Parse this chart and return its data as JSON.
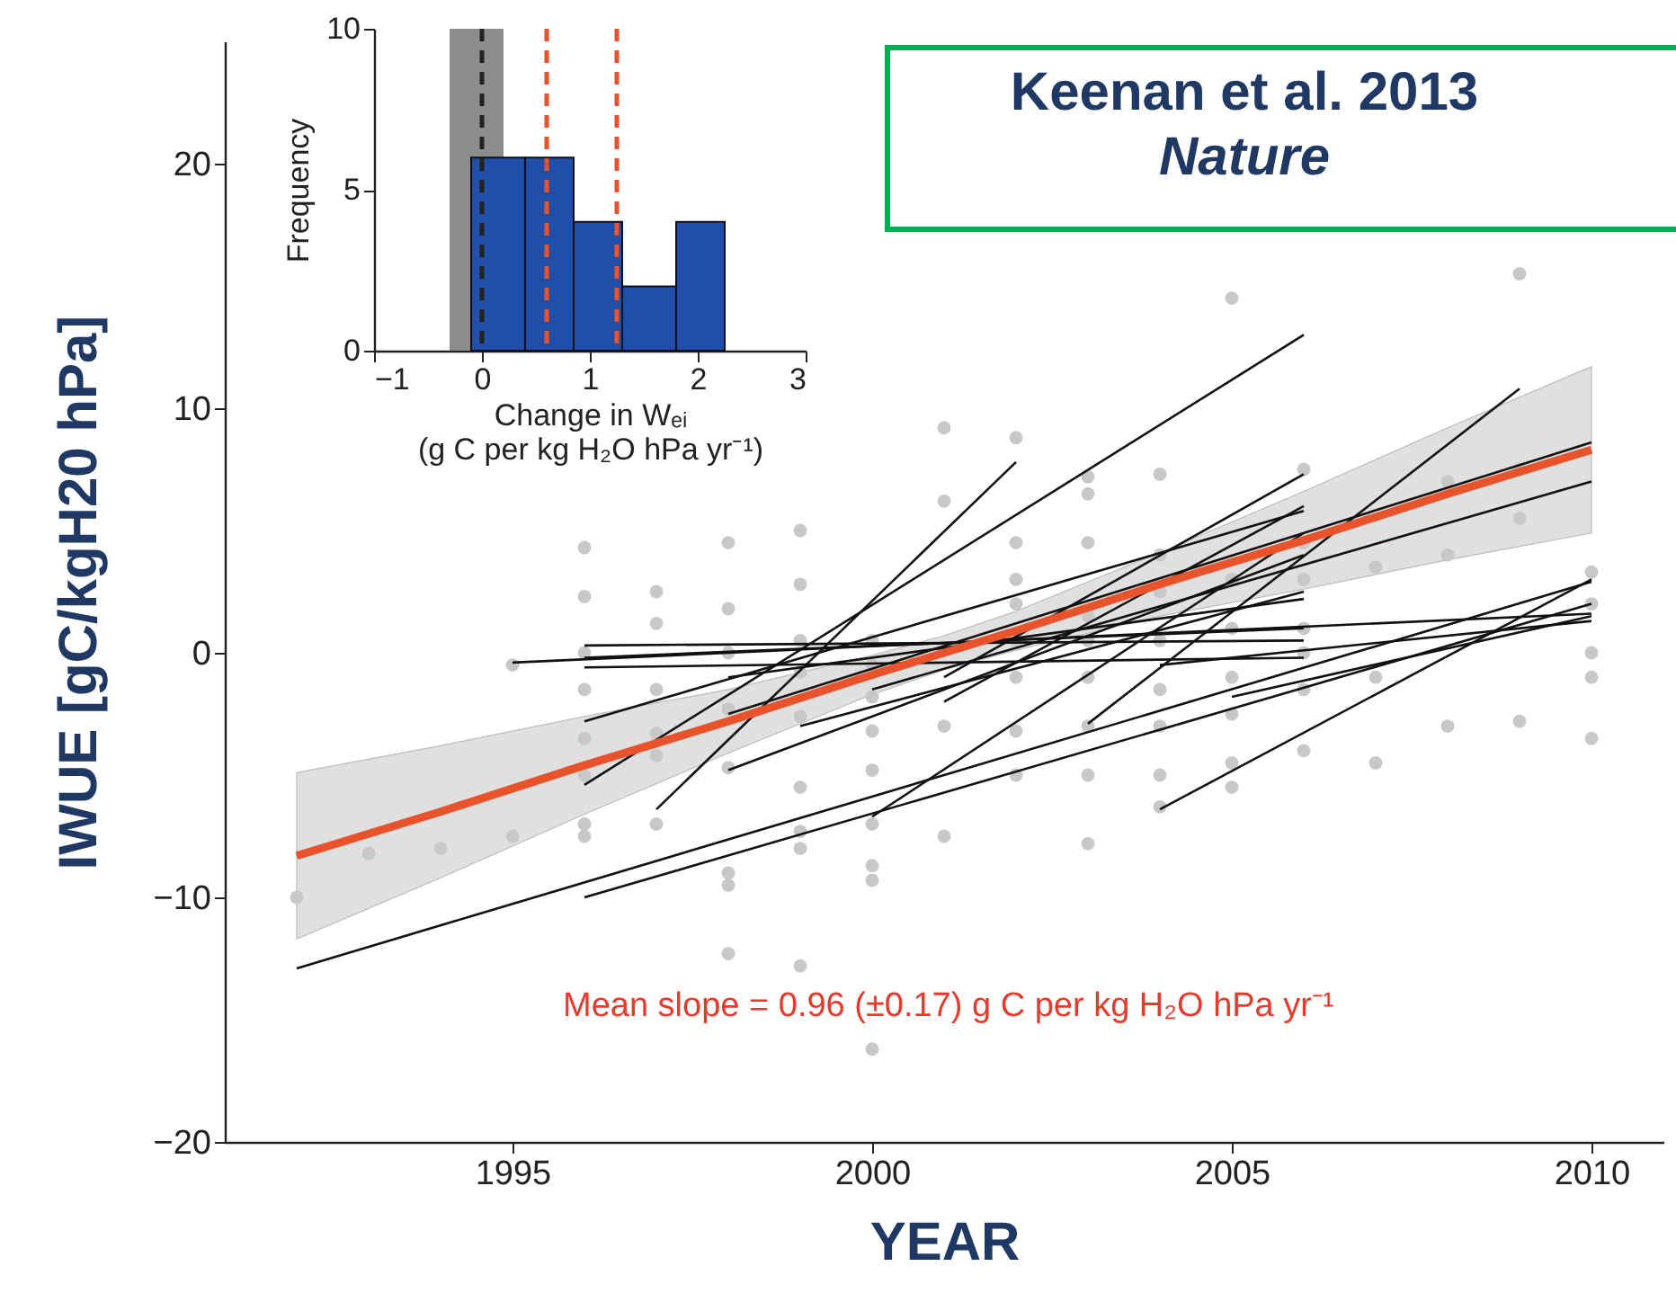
{
  "chart_data": [
    {
      "type": "line",
      "xlabel": "YEAR",
      "ylabel": "IWUE [gC/kgH20 hPa]",
      "xlim": [
        1991,
        2011
      ],
      "xticks": [
        1995,
        2000,
        2005,
        2010
      ],
      "ylim": [
        -20,
        25
      ],
      "yticks": [
        -20,
        -10,
        0,
        10,
        20
      ],
      "grid": false,
      "annotations": [
        "Keenan et al. 2013\nNature",
        "Mean slope = 0.96 (±0.17) g C per kg H₂O hPa yr⁻¹"
      ],
      "series": [
        {
          "type": "scatter",
          "color": "#c8c8c8",
          "marker": "circle",
          "x": [
            1992,
            1993,
            1994,
            1995,
            1995,
            1996,
            1996,
            1996,
            1996,
            1996,
            1996,
            1996,
            1996,
            1997,
            1997,
            1997,
            1997,
            1997,
            1997,
            1998,
            1998,
            1998,
            1998,
            1998,
            1998,
            1998,
            1998,
            1999,
            1999,
            1999,
            1999,
            1999,
            1999,
            1999,
            1999,
            1999,
            2000,
            2000,
            2000,
            2000,
            2000,
            2000,
            2000,
            2000,
            2000,
            2001,
            2001,
            2001,
            2001,
            2002,
            2002,
            2002,
            2002,
            2002,
            2002,
            2002,
            2002,
            2003,
            2003,
            2003,
            2003,
            2003,
            2003,
            2003,
            2003,
            2003,
            2004,
            2004,
            2004,
            2004,
            2004,
            2004,
            2004,
            2004,
            2005,
            2005,
            2005,
            2005,
            2005,
            2005,
            2005,
            2006,
            2006,
            2006,
            2006,
            2006,
            2006,
            2006,
            2007,
            2007,
            2007,
            2008,
            2008,
            2008,
            2009,
            2009,
            2009,
            2009,
            2010,
            2010,
            2010,
            2010,
            2010
          ],
          "values": [
            -10,
            -8.2,
            -8,
            -7.5,
            -0.5,
            4.3,
            2.3,
            0,
            -1.5,
            -3.5,
            -5,
            -7,
            -7.5,
            2.5,
            1.2,
            -1.5,
            -3.3,
            -4.2,
            -7,
            4.5,
            1.8,
            0,
            -2.3,
            -4.7,
            -9,
            -9.5,
            -12.3,
            5,
            2.8,
            0.5,
            -0.8,
            -2.6,
            -5.5,
            -7.3,
            -8,
            -12.8,
            0.5,
            -0.5,
            -1.8,
            -3.2,
            -4.8,
            -7,
            -8.7,
            -9.3,
            -16.2,
            9.2,
            6.2,
            -3,
            -7.5,
            8.8,
            4.5,
            3,
            2,
            0.5,
            -1,
            -3.2,
            -5,
            7.2,
            6.5,
            4.5,
            1.5,
            0.5,
            -1,
            -3,
            -5,
            -7.8,
            7.3,
            4,
            2.5,
            0.5,
            -1.5,
            -3,
            -5,
            -6.3,
            14.5,
            3,
            1,
            -1,
            -2.5,
            -4.5,
            -5.5,
            7.5,
            4.5,
            3,
            1,
            0,
            -1.5,
            -4,
            3.5,
            -1,
            -4.5,
            7,
            4,
            -3,
            15.5,
            7.5,
            5.5,
            -2.8,
            3.3,
            2,
            0,
            -1,
            -3.5
          ]
        },
        {
          "type": "line",
          "color": "#111111",
          "x": [
            1992,
            2010
          ],
          "values": [
            -12.9,
            2.9
          ]
        },
        {
          "type": "line",
          "color": "#111111",
          "x": [
            1996,
            2010
          ],
          "values": [
            -10,
            2
          ]
        },
        {
          "type": "line",
          "color": "#111111",
          "x": [
            1996,
            2006
          ],
          "values": [
            -5.4,
            13
          ]
        },
        {
          "type": "line",
          "color": "#111111",
          "x": [
            1997,
            2002
          ],
          "values": [
            -6.4,
            7.8
          ]
        },
        {
          "type": "line",
          "color": "#111111",
          "x": [
            1995,
            2010
          ],
          "values": [
            -0.4,
            1.6
          ]
        },
        {
          "type": "line",
          "color": "#111111",
          "x": [
            1996,
            2006
          ],
          "values": [
            0.3,
            0.5
          ]
        },
        {
          "type": "line",
          "color": "#111111",
          "x": [
            1996,
            2006
          ],
          "values": [
            -0.2,
            1
          ]
        },
        {
          "type": "line",
          "color": "#111111",
          "x": [
            1996,
            2006
          ],
          "values": [
            -0.6,
            -0.2
          ]
        },
        {
          "type": "line",
          "color": "#111111",
          "x": [
            1996,
            2006
          ],
          "values": [
            -2.8,
            5.8
          ]
        },
        {
          "type": "line",
          "color": "#111111",
          "x": [
            1999,
            2006
          ],
          "values": [
            -3,
            2.5
          ]
        },
        {
          "type": "line",
          "color": "#111111",
          "x": [
            1998,
            2006
          ],
          "values": [
            -4.8,
            4
          ]
        },
        {
          "type": "line",
          "color": "#111111",
          "x": [
            2000,
            2006
          ],
          "values": [
            -6.7,
            4.9
          ]
        },
        {
          "type": "line",
          "color": "#111111",
          "x": [
            2004,
            2010
          ],
          "values": [
            -6.4,
            3
          ]
        },
        {
          "type": "line",
          "color": "#111111",
          "x": [
            2003,
            2009
          ],
          "values": [
            -2.9,
            10.8
          ]
        },
        {
          "type": "line",
          "color": "#111111",
          "x": [
            2005,
            2010
          ],
          "values": [
            -1.8,
            1.5
          ]
        },
        {
          "type": "line",
          "color": "#111111",
          "x": [
            2004,
            2010
          ],
          "values": [
            -0.5,
            1.3
          ]
        },
        {
          "type": "line",
          "color": "#111111",
          "x": [
            2000,
            2010
          ],
          "values": [
            -1.5,
            7
          ]
        },
        {
          "type": "line",
          "color": "#111111",
          "x": [
            1998,
            2010
          ],
          "values": [
            -2.5,
            8.6
          ]
        },
        {
          "type": "line",
          "color": "#111111",
          "x": [
            2001,
            2006
          ],
          "values": [
            -2,
            6
          ]
        },
        {
          "type": "line",
          "color": "#111111",
          "x": [
            1998,
            2006
          ],
          "values": [
            -1,
            2.2
          ]
        },
        {
          "type": "line",
          "color": "#111111",
          "x": [
            2001,
            2006
          ],
          "values": [
            -1,
            7.3
          ]
        },
        {
          "type": "line",
          "color": "#e8532b",
          "x": [
            1992,
            1994,
            1996,
            1998,
            2000,
            2001,
            2002,
            2004,
            2006,
            2008,
            2010
          ],
          "values": [
            -8.3,
            -6.5,
            -4.6,
            -2.8,
            -0.9,
            0,
            0.9,
            2.8,
            4.6,
            6.5,
            8.3
          ],
          "lower": [
            -11.7,
            -9.2,
            -6.6,
            -4.1,
            -1.7,
            -0.7,
            0.1,
            1.5,
            2.6,
            3.8,
            4.9
          ],
          "upper": [
            -4.9,
            -3.8,
            -2.6,
            -1.5,
            -0.1,
            0.7,
            1.7,
            4.1,
            6.6,
            9.2,
            11.7
          ]
        }
      ]
    },
    {
      "type": "histogram",
      "xlabel": "Change in Wₑᵢ\n(g C per kg H₂O hPa yr⁻¹)",
      "ylabel": "Frequency",
      "bins": [
        -0.1,
        0.4,
        0.85,
        1.3,
        1.8,
        2.25
      ],
      "values": [
        6,
        6,
        4,
        2,
        4
      ],
      "color": "#1f4fa8",
      "xlim": [
        -1,
        3
      ],
      "xticks": [
        -1,
        0,
        1,
        2,
        3
      ],
      "ylim": [
        0,
        10
      ],
      "yticks": [
        0,
        5,
        10
      ],
      "grid": false,
      "bands": [
        {
          "axis": "x",
          "from": -0.3,
          "to": 0.2,
          "color": "#8c8c8c"
        }
      ],
      "ref_lines": [
        {
          "axis": "x",
          "value": 0,
          "color": "#222222",
          "line_style": "dashed"
        },
        {
          "axis": "x",
          "value": 0.6,
          "color": "#e8532b",
          "line_style": "dashed"
        },
        {
          "axis": "x",
          "value": 1.25,
          "color": "#e8532b",
          "line_style": "dashed"
        }
      ]
    }
  ]
}
